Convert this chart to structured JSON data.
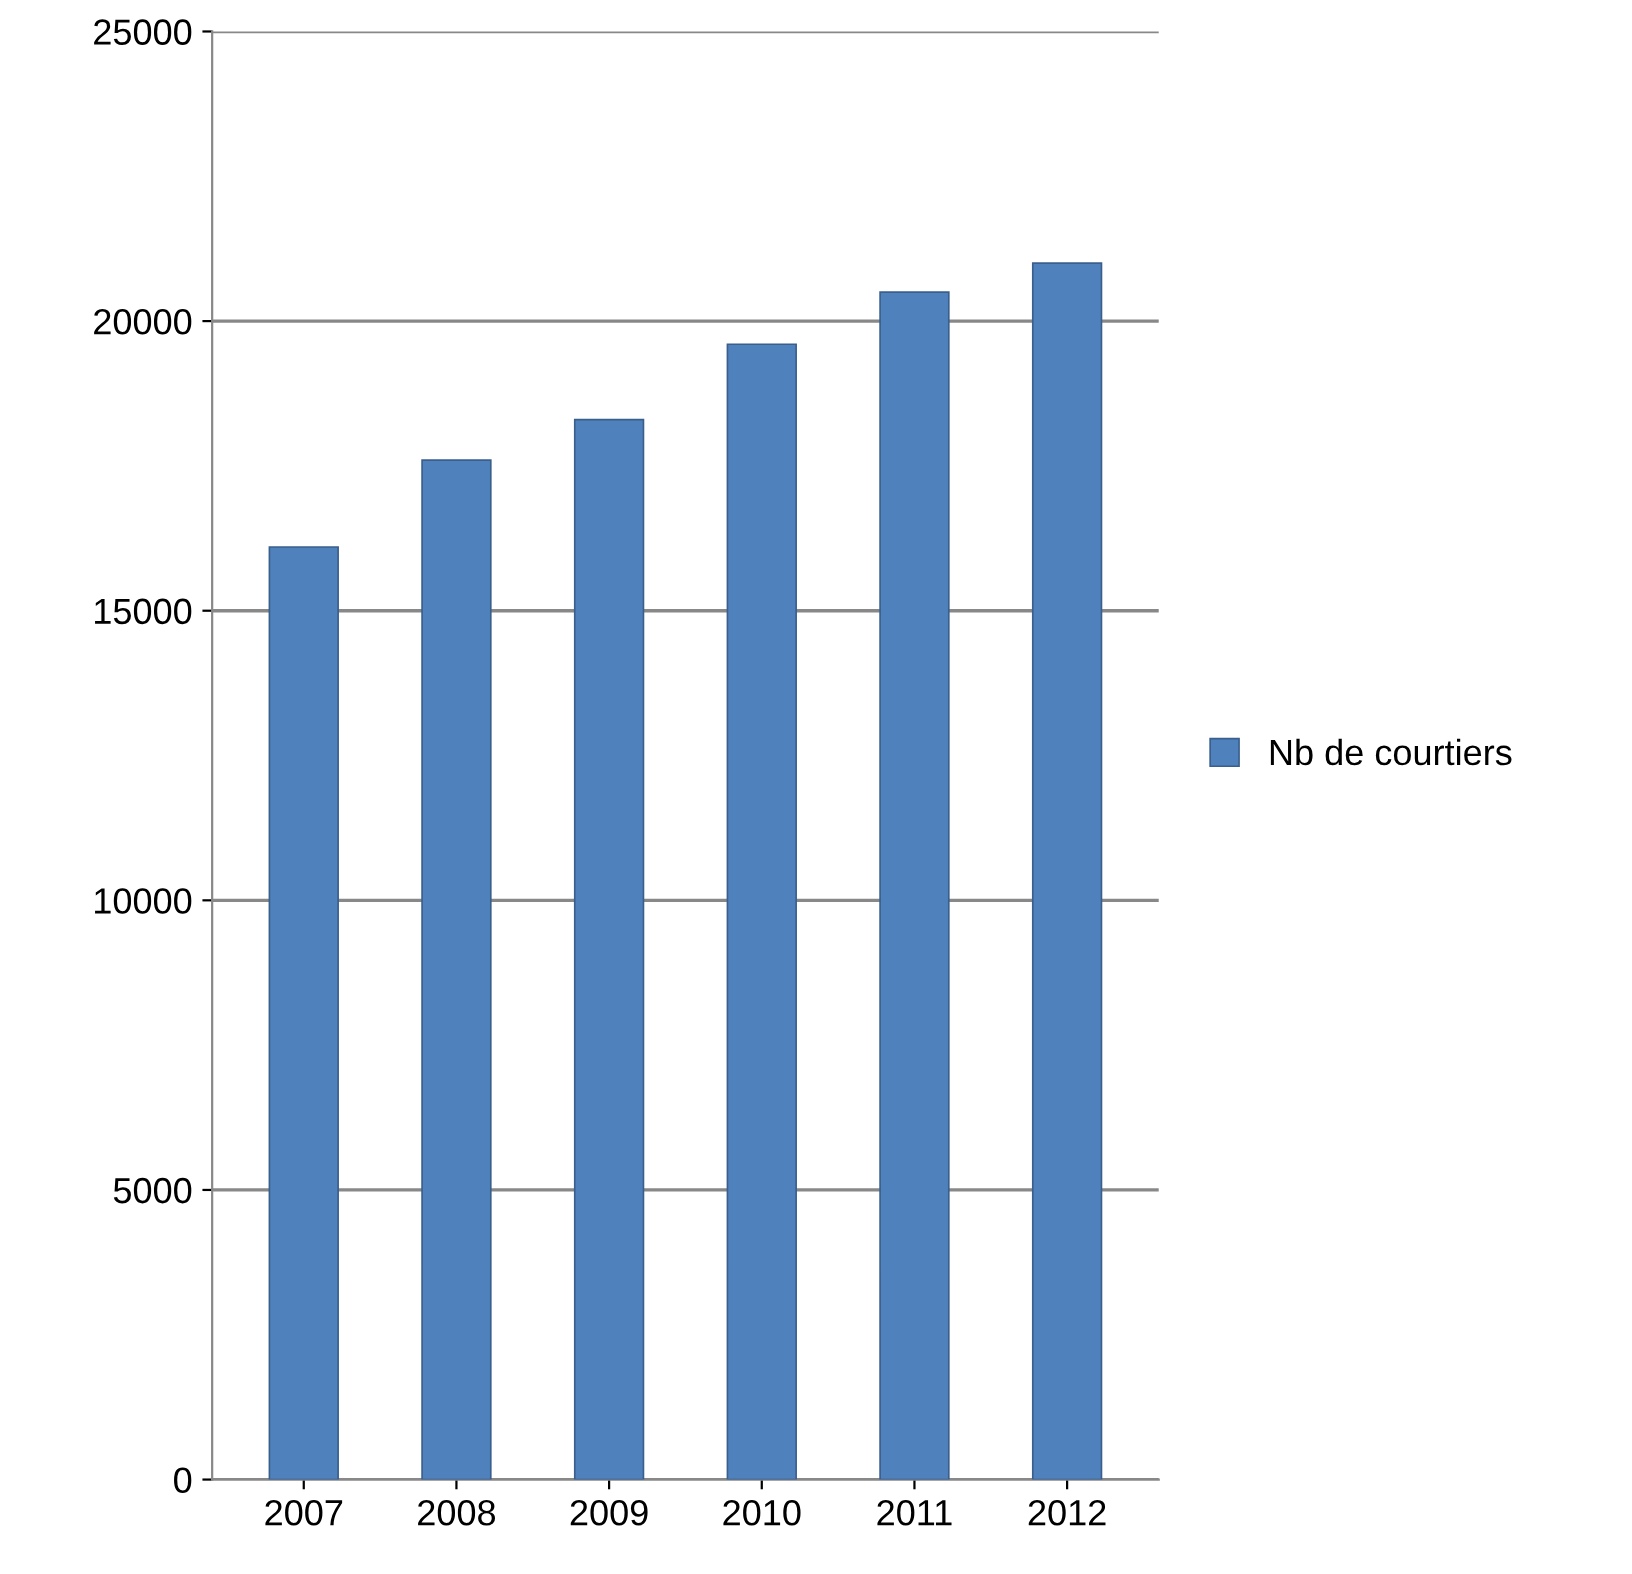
{
  "chart_data": {
    "type": "bar",
    "categories": [
      "2007",
      "2008",
      "2009",
      "2010",
      "2011",
      "2012"
    ],
    "series": [
      {
        "name": "Nb de courtiers",
        "color": "#4f81bd",
        "values": [
          16100,
          17600,
          18300,
          19600,
          20500,
          21000
        ]
      }
    ],
    "ylim": [
      0,
      25000
    ],
    "yticks": [
      0,
      5000,
      10000,
      15000,
      20000,
      25000
    ],
    "grid": "y",
    "legend": "right"
  }
}
